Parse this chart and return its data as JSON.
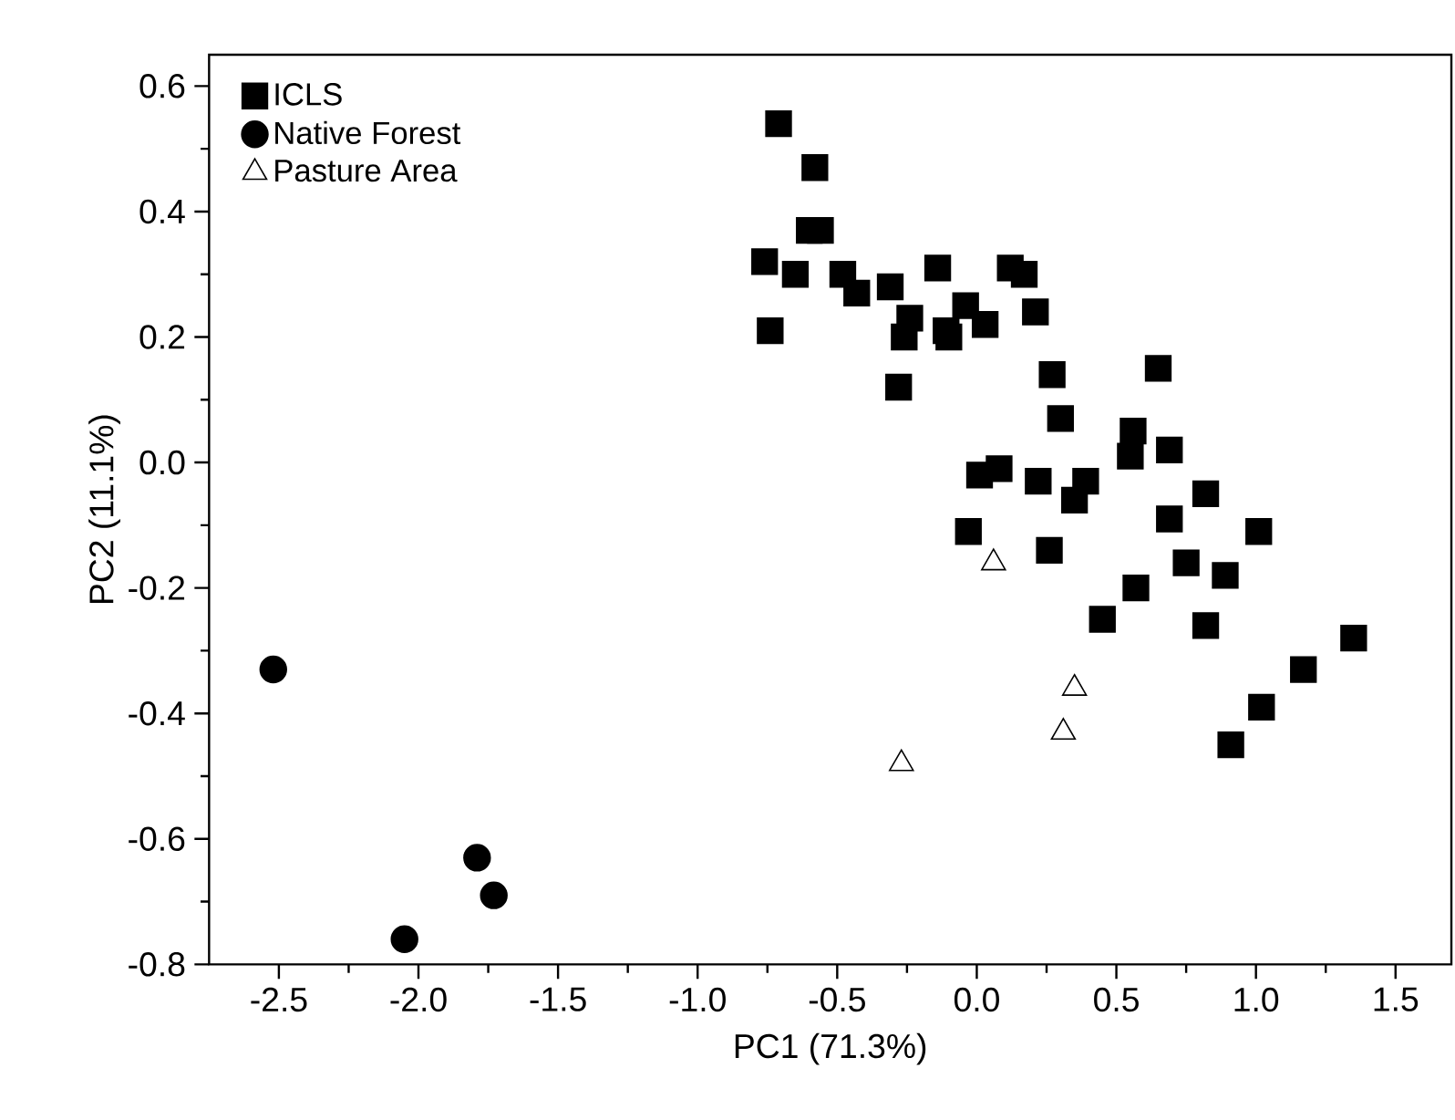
{
  "chart_data": {
    "type": "scatter",
    "xlabel": "PC1 (71.3%)",
    "ylabel": "PC2 (11.1%)",
    "xlim": [
      -2.75,
      1.7
    ],
    "ylim": [
      -0.8,
      0.65
    ],
    "xticks": [
      -2.5,
      {
        "value": -2,
        "label": "-2.0"
      },
      -1.5,
      {
        "value": -1,
        "label": "-1.0"
      },
      -0.5,
      {
        "value": 0,
        "label": "0.0"
      },
      0.5,
      {
        "value": 1,
        "label": "1.0"
      },
      1.5
    ],
    "yticks": [
      -0.8,
      -0.6,
      -0.4,
      -0.2,
      {
        "value": 0,
        "label": "0.0"
      },
      0.2,
      0.4,
      0.6
    ],
    "legend": "top left",
    "grid": false,
    "series": [
      {
        "name": "ICLS",
        "color": "#000000",
        "marker": "square",
        "x": [
          -0.71,
          -0.58,
          -0.6,
          -0.56,
          -0.76,
          -0.65,
          -0.48,
          -0.43,
          -0.31,
          -0.14,
          0.12,
          0.17,
          0.21,
          -0.04,
          -0.24,
          -0.26,
          -0.11,
          -0.1,
          0.03,
          -0.74,
          -0.28,
          0.27,
          0.65,
          0.3,
          0.56,
          0.55,
          0.69,
          0.01,
          0.08,
          0.22,
          0.39,
          0.35,
          0.82,
          0.69,
          1.01,
          -0.03,
          0.26,
          0.75,
          0.89,
          0.57,
          0.45,
          0.82,
          1.35,
          1.17,
          1.02,
          0.91
        ],
        "values": [
          0.54,
          0.47,
          0.37,
          0.37,
          0.32,
          0.3,
          0.3,
          0.27,
          0.28,
          0.31,
          0.31,
          0.3,
          0.24,
          0.25,
          0.23,
          0.2,
          0.21,
          0.2,
          0.22,
          0.21,
          0.12,
          0.14,
          0.15,
          0.07,
          0.05,
          0.01,
          0.02,
          -0.02,
          -0.01,
          -0.03,
          -0.03,
          -0.06,
          -0.05,
          -0.09,
          -0.11,
          -0.11,
          -0.14,
          -0.16,
          -0.18,
          -0.2,
          -0.25,
          -0.26,
          -0.28,
          -0.33,
          -0.39,
          -0.45
        ]
      },
      {
        "name": "Native Forest",
        "color": "#000000",
        "marker": "circle",
        "x": [
          -2.52,
          -1.79,
          -1.73,
          -2.05
        ],
        "values": [
          -0.33,
          -0.63,
          -0.69,
          -0.76
        ]
      },
      {
        "name": "Pasture Area",
        "color": "#000000",
        "marker": "triangle",
        "x": [
          0.06,
          0.35,
          0.31,
          -0.27
        ],
        "values": [
          -0.16,
          -0.36,
          -0.43,
          -0.48
        ]
      }
    ]
  }
}
